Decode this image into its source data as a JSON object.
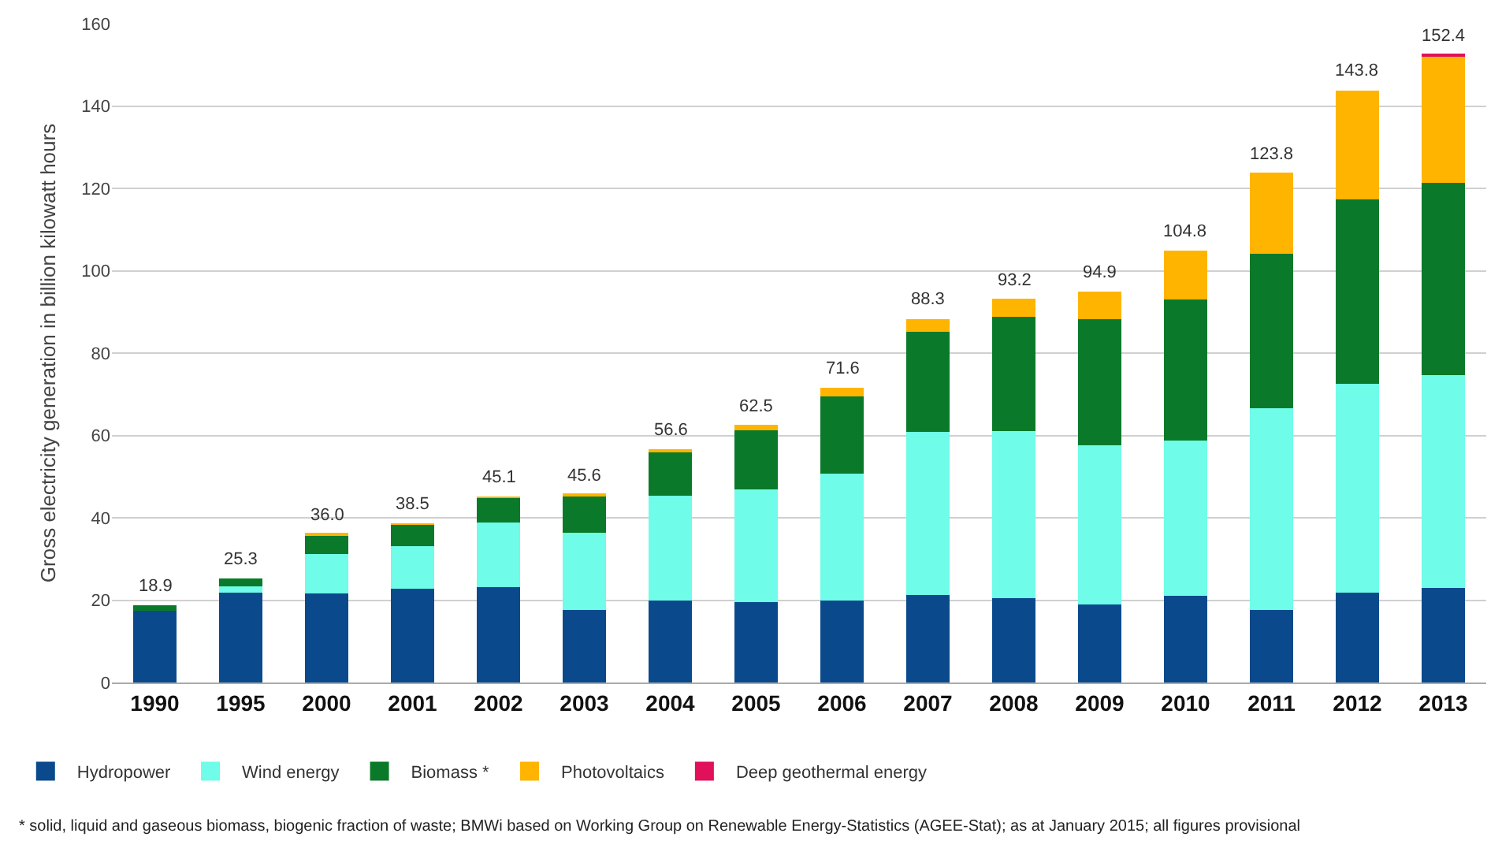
{
  "chart_data": {
    "type": "bar",
    "stacked": true,
    "ylabel": "Gross electricity generation in billion kilowatt hours",
    "categories": [
      "1990",
      "1995",
      "2000",
      "2001",
      "2002",
      "2003",
      "2004",
      "2005",
      "2006",
      "2007",
      "2008",
      "2009",
      "2010",
      "2011",
      "2012",
      "2013"
    ],
    "series": [
      {
        "name": "Hydropower",
        "color": "#0a4a8c",
        "values": [
          17.4,
          21.8,
          21.7,
          22.7,
          23.1,
          17.7,
          19.9,
          19.6,
          20.0,
          21.2,
          20.4,
          19.0,
          21.0,
          17.7,
          21.8,
          23.0
        ]
      },
      {
        "name": "Wind energy",
        "color": "#6ffce8",
        "values": [
          null,
          1.5,
          9.5,
          10.5,
          15.8,
          18.7,
          25.5,
          27.2,
          30.7,
          39.7,
          40.6,
          38.6,
          37.8,
          48.9,
          50.7,
          51.7
        ]
      },
      {
        "name": "Biomass *",
        "color": "#0a7a2a",
        "values": [
          1.4,
          2.0,
          4.7,
          5.2,
          6.0,
          8.9,
          10.6,
          14.4,
          18.7,
          24.3,
          27.8,
          30.7,
          34.3,
          37.6,
          44.9,
          46.6
        ]
      },
      {
        "name": "Photovoltaics",
        "color": "#ffb400",
        "values": [
          0,
          0,
          0.1,
          0.1,
          0.2,
          0.3,
          0.6,
          1.3,
          2.2,
          3.1,
          4.4,
          6.6,
          11.7,
          19.6,
          26.4,
          31.0
        ]
      },
      {
        "name": "Deep geothermal energy",
        "color": "#e0105a",
        "values": [
          0,
          0,
          0,
          0,
          0,
          0,
          0,
          0,
          0,
          0,
          0,
          0,
          0,
          0,
          0,
          0.1
        ]
      }
    ],
    "totals": [
      "18.9",
      "25.3",
      "36.0",
      "38.5",
      "45.1",
      "45.6",
      "56.6",
      "62.5",
      "71.6",
      "88.3",
      "93.2",
      "94.9",
      "104.8",
      "123.8",
      "143.8",
      "152.4"
    ],
    "ylim": [
      0,
      160
    ],
    "yticks": [
      0,
      20,
      40,
      60,
      80,
      100,
      120,
      140,
      160
    ],
    "grid": "y",
    "legend": "bottom",
    "annotations": [
      "* solid, liquid and gaseous biomass, biogenic fraction of waste; BMWi based on Working Group on Renewable Energy-Statistics (AGEE-Stat); as at January 2015; all figures provisional"
    ]
  }
}
